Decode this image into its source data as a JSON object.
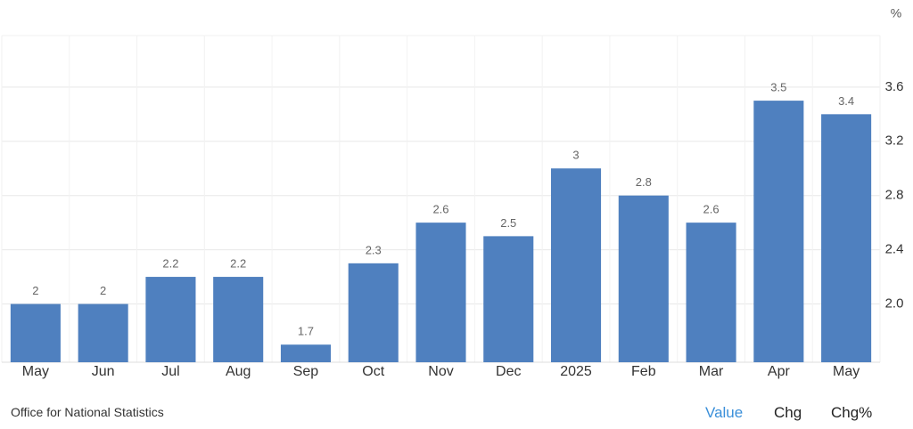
{
  "chart_data": {
    "type": "bar",
    "unit": "%",
    "categories": [
      "May",
      "Jun",
      "Jul",
      "Aug",
      "Sep",
      "Oct",
      "Nov",
      "Dec",
      "2025",
      "Feb",
      "Mar",
      "Apr",
      "May"
    ],
    "values": [
      2,
      2,
      2.2,
      2.2,
      1.7,
      2.3,
      2.6,
      2.5,
      3,
      2.8,
      2.6,
      3.5,
      3.4
    ],
    "color": "#4f80bf",
    "ylim": [
      1.57,
      3.98
    ],
    "yticks": [
      {
        "value": 2,
        "label": "2.0"
      },
      2.4,
      2.8,
      3.2,
      3.6
    ],
    "grid": true
  },
  "footer": {
    "source": "Office for National Statistics",
    "tabs": [
      "Value",
      "Chg",
      "Chg%"
    ]
  }
}
